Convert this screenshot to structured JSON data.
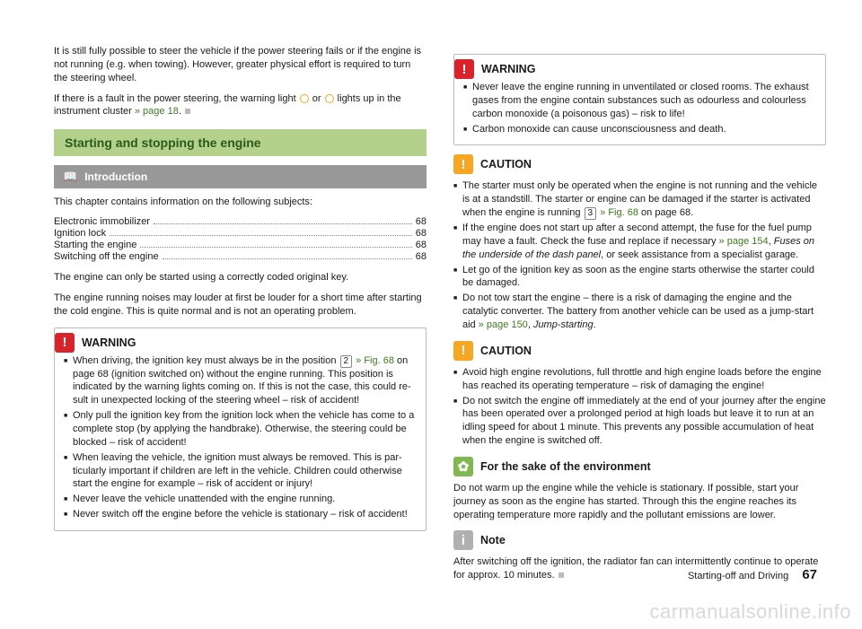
{
  "intro": {
    "p1": "It is still fully possible to steer the vehicle if the power steering fails or if the en­gine is not running (e.g. when towing). However, greater physical effort is re­quired to turn the steering wheel.",
    "p2a": "If there is a fault in the power steering, the warning light ",
    "p2b": " or ",
    "p2c": " lights up in the instrument cluster ",
    "p2_link": "» page 18",
    "p2d": "."
  },
  "section_title": "Starting and stopping the engine",
  "sub_title": "Introduction",
  "toc_intro": "This chapter contains information on the following subjects:",
  "toc": [
    {
      "label": "Electronic immobilizer",
      "page": "68"
    },
    {
      "label": "Ignition lock",
      "page": "68"
    },
    {
      "label": "Starting the engine",
      "page": "68"
    },
    {
      "label": "Switching off the engine",
      "page": "68"
    }
  ],
  "after_toc_p1": "The engine can only be started using a correctly coded original key.",
  "after_toc_p2": "The engine running noises may louder at first be louder for a short time after starting the cold engine. This is quite normal and is not an operating problem.",
  "warning1": {
    "title": "WARNING",
    "items": [
      {
        "pre": "When driving, the ignition key must always be in the position ",
        "key": "2",
        "link": " » Fig. 68",
        "post": " on page 68 (ignition switched on) without the engine running. This position is indicated by the warning lights coming on. If this is not the case, this could re­sult in unexpected locking of the steering wheel – risk of accident!"
      },
      {
        "text": "Only pull the ignition key from the ignition lock when the vehicle has come to a complete stop (by applying the handbrake). Otherwise, the steering could be blocked – risk of accident!"
      },
      {
        "text": "When leaving the vehicle, the ignition must always be removed. This is par­ticularly important if children are left in the vehicle. Children could otherwise start the engine for example – risk of accident or injury!"
      },
      {
        "text": "Never leave the vehicle unattended with the engine running."
      },
      {
        "text": "Never switch off the engine before the vehicle is stationary – risk of acci­dent!"
      }
    ]
  },
  "warning2": {
    "title": "WARNING",
    "items": [
      {
        "text": "Never leave the engine running in unventilated or closed rooms. The ex­haust gases from the engine contain substances such as odourless and col­ourless carbon monoxide (a poisonous gas) – risk to life!"
      },
      {
        "text": "Carbon monoxide can cause unconsciousness and death."
      }
    ]
  },
  "caution1": {
    "title": "CAUTION",
    "items": [
      {
        "pre": "The starter must only be operated when the engine is not running and the vehi­cle is at a standstill. The starter or engine can be damaged if the starter is activa­ted when the engine is running ",
        "key": "3",
        "link": " » Fig. 68",
        "post": " on page 68."
      },
      {
        "pre": "If the engine does not start up after a second attempt, the fuse for the fuel pump may have a fault. Check the fuse and replace if necessary ",
        "link": "» page 154",
        "post2": ", ",
        "italic": "Fuses on the underside of the dash panel",
        "post3": ", or seek assistance from a specialist ga­rage."
      },
      {
        "text": "Let go of the ignition key as soon as the engine starts otherwise the starter could be damaged."
      },
      {
        "pre": "Do not tow start the engine – there is a risk of damaging the engine and the catalytic converter. The battery from another vehicle can be used as a jump-start aid ",
        "link": "» page 150",
        "post2": ", ",
        "italic": "Jump-starting",
        "post3": "."
      }
    ]
  },
  "caution2": {
    "title": "CAUTION",
    "items": [
      {
        "text": "Avoid high engine revolutions, full throttle and high engine loads before the en­gine has reached its operating temperature – risk of damaging the engine!"
      },
      {
        "text": "Do not switch the engine off immediately at the end of your journey after the engine has been operated over a prolonged period at high loads but leave it to run at an idling speed for about 1 minute. This prevents any possible accumulation of heat when the engine is switched off."
      }
    ]
  },
  "env": {
    "title": "For the sake of the environment",
    "text": "Do not warm up the engine while the vehicle is stationary. If possible, start your journey as soon as the engine has started. Through this the engine reaches its operating temperature more rapidly and the pollutant emissions are lower."
  },
  "note": {
    "title": "Note",
    "text": "After switching off the ignition, the radiator fan can intermittently continue to op­erate for approx. 10 minutes."
  },
  "footer": {
    "section": "Starting-off and Driving",
    "page": "67"
  },
  "watermark": "carmanualsonline.info",
  "icons": {
    "book": "📖",
    "warn": "!",
    "leaf": "✿",
    "info": "i"
  },
  "colors": {
    "section_bg": "#b4d18b",
    "section_fg": "#2a5a1a",
    "sub_bg": "#999999",
    "red": "#d8232a",
    "orange": "#f5a623",
    "green_sq": "#7fb84e",
    "grey_sq": "#b0b0b0",
    "link": "#3d7a1f"
  }
}
